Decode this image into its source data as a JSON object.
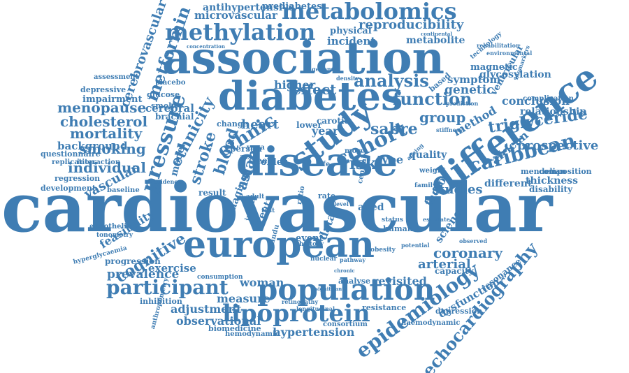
{
  "colors": {
    "word": "#3f7db3"
  },
  "words": [
    "cardiovascular",
    "association",
    "diabetes",
    "european",
    "disease",
    "difference",
    "study",
    "population",
    "cohort",
    "metabolomics",
    "methylation",
    "lipoprotein",
    "epidemiology",
    "echocardiography",
    "caribbean",
    "participant",
    "pressure",
    "ethnicity",
    "ethnic",
    "analysis",
    "function",
    "menopause",
    "cholesterol",
    "mortality",
    "smoking",
    "individual",
    "coronary",
    "triglyceride",
    "prospective",
    "reproducibility",
    "microvascular",
    "antihypertensive",
    "prediabetes",
    "metabolite",
    "glycosylation",
    "incident",
    "physical",
    "heart",
    "blood",
    "stroke",
    "asian",
    "risk",
    "sabre",
    "effect",
    "genetic",
    "symptom",
    "group",
    "method",
    "african",
    "conclusion",
    "relationship",
    "ventricular",
    "magnetic",
    "complication",
    "cognitive",
    "vascular",
    "feasibility",
    "prevalence",
    "exercise",
    "woman",
    "measure",
    "revisited",
    "adjustment",
    "observational",
    "hypertension",
    "biomedicine",
    "hemodynamic",
    "consortium",
    "resistance",
    "arterial",
    "capacity",
    "thickness",
    "disability",
    "composition",
    "studies",
    "science",
    "factor",
    "dysfunction",
    "resonance",
    "depression",
    "haemodynamic",
    "impairment",
    "depressive",
    "assessment",
    "metformin",
    "cerebrovascular",
    "cerebral",
    "brachial",
    "glucose",
    "smoker",
    "placebo",
    "background",
    "questionnaire",
    "replication",
    "interaction",
    "regression",
    "development",
    "baseline",
    "endothelial",
    "tonometry",
    "progression",
    "inhibition",
    "consumption",
    "anthropometry",
    "hyperglycaemia",
    "change",
    "lower",
    "carotid",
    "year",
    "higher",
    "older",
    "person",
    "sleep",
    "yoga",
    "type",
    "quality",
    "mendelian",
    "different",
    "result",
    "imaging",
    "model",
    "data",
    "brent",
    "aged",
    "event",
    "history",
    "adult",
    "human",
    "status",
    "test",
    "rate",
    "analyse",
    "based",
    "concentration",
    "technology",
    "environmental",
    "rehabilitation",
    "biomarkers",
    "continental",
    "acid",
    "life",
    "more",
    "genome",
    "density",
    "intima",
    "hindu",
    "ratio",
    "level",
    "central",
    "ageing",
    "weight",
    "evidence",
    "nuclear",
    "obesity",
    "longitudinal",
    "retinopathy",
    "chronic",
    "potential",
    "pathway",
    "estimate",
    "significant",
    "stiffness",
    "prediction",
    "family",
    "observed"
  ]
}
